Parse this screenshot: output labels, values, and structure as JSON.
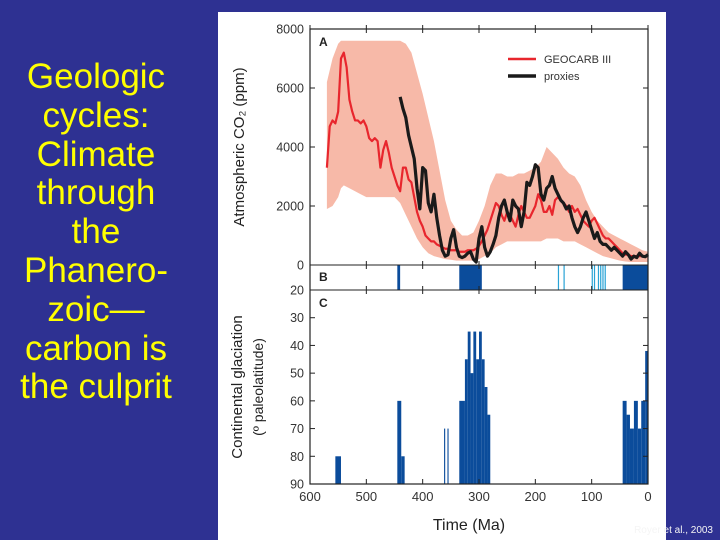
{
  "slide": {
    "title_lines": [
      "Geologic",
      "cycles:",
      "Climate",
      "through",
      "the",
      "Phanero-",
      "zoic—",
      "carbon is",
      "the culprit"
    ],
    "credit": "Royer et al., 2003",
    "colors": {
      "background": "#2e3192",
      "title": "#ffff00"
    }
  },
  "chart_data": [
    {
      "panel": "A",
      "type": "line",
      "ylabel": "Atmospheric CO₂ (ppm)",
      "xlim": [
        600,
        0
      ],
      "ylim": [
        0,
        8000
      ],
      "yticks": [
        0,
        2000,
        4000,
        6000,
        8000
      ],
      "legend": {
        "placement": "top-right",
        "entries": [
          "GEOCARB III",
          "proxies"
        ]
      },
      "series": [
        {
          "name": "GEOCARB III",
          "color": "#e8262d",
          "x": [
            570,
            565,
            560,
            555,
            550,
            545,
            540,
            535,
            530,
            525,
            520,
            515,
            510,
            505,
            500,
            495,
            490,
            485,
            480,
            475,
            470,
            465,
            460,
            455,
            450,
            445,
            440,
            435,
            430,
            425,
            420,
            415,
            410,
            405,
            400,
            395,
            390,
            385,
            380,
            375,
            370,
            365,
            360,
            355,
            350,
            345,
            340,
            335,
            330,
            325,
            320,
            315,
            310,
            305,
            300,
            295,
            290,
            285,
            280,
            275,
            270,
            265,
            260,
            255,
            250,
            245,
            240,
            235,
            230,
            225,
            220,
            215,
            210,
            205,
            200,
            195,
            190,
            185,
            180,
            175,
            170,
            165,
            160,
            155,
            150,
            145,
            140,
            135,
            130,
            125,
            120,
            115,
            110,
            105,
            100,
            95,
            90,
            85,
            80,
            75,
            70,
            65,
            60,
            55,
            50,
            45,
            40,
            35,
            30,
            25,
            20,
            15,
            10,
            5,
            0
          ],
          "values": [
            3300,
            4700,
            4900,
            4800,
            5200,
            7000,
            7200,
            6700,
            5600,
            5200,
            4900,
            4900,
            4800,
            4900,
            4700,
            4300,
            4200,
            4300,
            4200,
            3300,
            3900,
            4200,
            3800,
            3300,
            3000,
            2700,
            2500,
            3300,
            3300,
            2900,
            2800,
            2300,
            1800,
            1500,
            1300,
            1000,
            900,
            800,
            800,
            700,
            650,
            600,
            550,
            550,
            500,
            500,
            500,
            450,
            450,
            450,
            500,
            500,
            500,
            550,
            650,
            800,
            1000,
            1200,
            1500,
            1800,
            2100,
            2000,
            1700,
            1500,
            1800,
            1700,
            1500,
            1300,
            1700,
            2000,
            1800,
            1600,
            1600,
            1800,
            2000,
            2400,
            2200,
            1800,
            1800,
            2000,
            1700,
            2200,
            2300,
            2200,
            2100,
            2000,
            1800,
            2000,
            1800,
            1900,
            1700,
            1500,
            1400,
            1300,
            1500,
            1600,
            1400,
            1200,
            1000,
            900,
            900,
            800,
            700,
            600,
            500,
            400,
            350,
            350,
            300,
            300,
            300,
            300,
            300,
            300,
            300
          ]
        },
        {
          "name": "proxies",
          "color": "#1a1a1a",
          "x": [
            440,
            435,
            430,
            425,
            420,
            415,
            410,
            405,
            400,
            395,
            390,
            385,
            380,
            375,
            370,
            365,
            360,
            355,
            350,
            345,
            340,
            335,
            330,
            325,
            320,
            315,
            310,
            305,
            300,
            295,
            290,
            285,
            280,
            275,
            270,
            265,
            260,
            255,
            250,
            245,
            240,
            235,
            230,
            225,
            220,
            215,
            210,
            205,
            200,
            195,
            190,
            185,
            180,
            175,
            170,
            165,
            160,
            155,
            150,
            145,
            140,
            135,
            130,
            125,
            120,
            115,
            110,
            105,
            100,
            95,
            90,
            85,
            80,
            75,
            70,
            65,
            60,
            55,
            50,
            45,
            40,
            35,
            30,
            25,
            20,
            15,
            10,
            5,
            0
          ],
          "values": [
            5700,
            5300,
            5000,
            4400,
            4000,
            3600,
            2600,
            1900,
            3300,
            3200,
            2100,
            1800,
            2400,
            1600,
            1000,
            500,
            300,
            350,
            900,
            1200,
            600,
            300,
            250,
            300,
            400,
            450,
            200,
            100,
            900,
            1300,
            600,
            300,
            450,
            700,
            1000,
            1600,
            2000,
            2200,
            1800,
            1500,
            2200,
            2000,
            1900,
            1300,
            1800,
            2800,
            2700,
            3000,
            3400,
            3300,
            2400,
            2200,
            2600,
            2700,
            3000,
            2600,
            2400,
            2200,
            2100,
            1900,
            2000,
            1600,
            1300,
            1100,
            1300,
            1600,
            1800,
            1500,
            1200,
            900,
            1100,
            800,
            700,
            700,
            600,
            500,
            600,
            500,
            400,
            300,
            450,
            350,
            200,
            300,
            250,
            400,
            300,
            280,
            350
          ]
        }
      ],
      "band": {
        "color": "#f7b9a8",
        "x": [
          570,
          560,
          550,
          545,
          540,
          530,
          520,
          510,
          500,
          490,
          480,
          470,
          460,
          450,
          440,
          430,
          420,
          410,
          400,
          390,
          380,
          370,
          360,
          350,
          340,
          330,
          320,
          310,
          300,
          290,
          280,
          270,
          260,
          250,
          240,
          230,
          220,
          210,
          200,
          190,
          180,
          170,
          160,
          150,
          140,
          130,
          120,
          110,
          100,
          90,
          80,
          70,
          60,
          50,
          40,
          30,
          20,
          10,
          0
        ],
        "upper": [
          6200,
          7000,
          7500,
          7600,
          7600,
          7600,
          7600,
          7600,
          7600,
          7600,
          7600,
          7600,
          7600,
          7600,
          7600,
          7500,
          7200,
          6500,
          5800,
          5000,
          4200,
          3200,
          2200,
          1500,
          1200,
          1000,
          1000,
          1100,
          1500,
          2000,
          2700,
          3100,
          3100,
          3000,
          3000,
          3100,
          3100,
          3200,
          3300,
          3500,
          4000,
          3800,
          3600,
          3300,
          3100,
          3000,
          2700,
          2200,
          1800,
          1500,
          1300,
          1100,
          1000,
          900,
          800,
          700,
          600,
          500,
          450
        ],
        "lower": [
          1900,
          2000,
          2300,
          2600,
          2700,
          2600,
          2500,
          2400,
          2300,
          2300,
          2300,
          2300,
          2300,
          2300,
          2100,
          1700,
          1300,
          900,
          600,
          400,
          300,
          250,
          200,
          180,
          150,
          150,
          150,
          150,
          200,
          300,
          400,
          600,
          700,
          800,
          800,
          800,
          800,
          800,
          800,
          800,
          900,
          900,
          900,
          800,
          800,
          800,
          700,
          600,
          500,
          400,
          300,
          250,
          200,
          150,
          120,
          100,
          100,
          100,
          100
        ]
      }
    },
    {
      "panel": "B",
      "type": "bar",
      "xlim": [
        600,
        0
      ],
      "color": "#0b4c9b",
      "light_color": "#29a3d6",
      "dark_intervals": [
        [
          445,
          440
        ],
        [
          335,
          295
        ],
        [
          45,
          0
        ]
      ],
      "light_intervals": [
        [
          160,
          158
        ],
        [
          150,
          148
        ],
        [
          100,
          99
        ],
        [
          96,
          94
        ],
        [
          89,
          87
        ],
        [
          85,
          84
        ],
        [
          81,
          80
        ],
        [
          77,
          76
        ]
      ]
    },
    {
      "panel": "C",
      "type": "bar",
      "ylabel_lines": [
        "Continental glaciation",
        "(º paleolatitude)"
      ],
      "xlabel": "Time (Ma)",
      "xlim": [
        600,
        0
      ],
      "ylim": [
        90,
        20
      ],
      "yticks": [
        20,
        30,
        40,
        50,
        60,
        70,
        80,
        90
      ],
      "xticks": [
        600,
        500,
        400,
        300,
        200,
        100,
        0
      ],
      "color": "#0b4c9b",
      "bars": [
        {
          "x0": 555,
          "x1": 545,
          "value": 80
        },
        {
          "x0": 445,
          "x1": 438,
          "value": 60
        },
        {
          "x0": 438,
          "x1": 432,
          "value": 80
        },
        {
          "x0": 362,
          "x1": 360,
          "value": 70
        },
        {
          "x0": 356,
          "x1": 354,
          "value": 70
        },
        {
          "x0": 335,
          "x1": 325,
          "value": 60
        },
        {
          "x0": 325,
          "x1": 320,
          "value": 45
        },
        {
          "x0": 320,
          "x1": 315,
          "value": 35
        },
        {
          "x0": 315,
          "x1": 310,
          "value": 50
        },
        {
          "x0": 310,
          "x1": 305,
          "value": 35
        },
        {
          "x0": 305,
          "x1": 300,
          "value": 45
        },
        {
          "x0": 300,
          "x1": 295,
          "value": 35
        },
        {
          "x0": 295,
          "x1": 290,
          "value": 45
        },
        {
          "x0": 290,
          "x1": 285,
          "value": 55
        },
        {
          "x0": 285,
          "x1": 280,
          "value": 65
        },
        {
          "x0": 45,
          "x1": 38,
          "value": 60
        },
        {
          "x0": 38,
          "x1": 32,
          "value": 65
        },
        {
          "x0": 32,
          "x1": 25,
          "value": 70
        },
        {
          "x0": 25,
          "x1": 18,
          "value": 60
        },
        {
          "x0": 18,
          "x1": 12,
          "value": 70
        },
        {
          "x0": 12,
          "x1": 5,
          "value": 60
        },
        {
          "x0": 5,
          "x1": 0,
          "value": 42
        }
      ]
    }
  ]
}
